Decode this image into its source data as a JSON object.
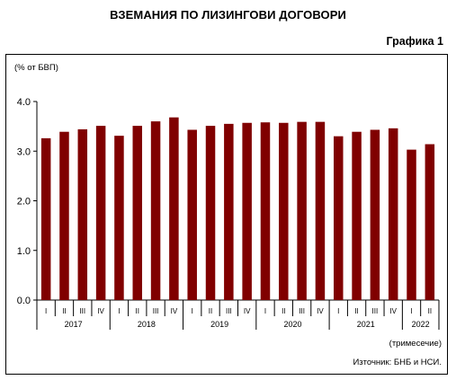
{
  "title": "ВЗЕМАНИЯ ПО ЛИЗИНГОВИ ДОГОВОРИ",
  "figure_label": "Графика 1",
  "unit_label": "(% от БВП)",
  "x_note": "(тримесечие)",
  "source": "Източник: БНБ и НСИ.",
  "colors": {
    "bar": "#800000",
    "axis": "#000000"
  },
  "chart_data": {
    "type": "bar",
    "title": "ВЗЕМАНИЯ ПО ЛИЗИНГОВИ ДОГОВОРИ",
    "ylabel": "(% от БВП)",
    "xlabel": "(тримесечие)",
    "ylim": [
      0,
      4.0
    ],
    "yticks": [
      "0.0",
      "1.0",
      "2.0",
      "3.0",
      "4.0"
    ],
    "grid": false,
    "legend": "none",
    "categories": [
      "I",
      "II",
      "III",
      "IV",
      "I",
      "II",
      "III",
      "IV",
      "I",
      "II",
      "III",
      "IV",
      "I",
      "II",
      "III",
      "IV",
      "I",
      "II",
      "III",
      "IV",
      "I",
      "II"
    ],
    "years": [
      {
        "label": "2017",
        "count": 4
      },
      {
        "label": "2018",
        "count": 4
      },
      {
        "label": "2019",
        "count": 4
      },
      {
        "label": "2020",
        "count": 4
      },
      {
        "label": "2021",
        "count": 4
      },
      {
        "label": "2022",
        "count": 2
      }
    ],
    "values": [
      3.26,
      3.39,
      3.44,
      3.51,
      3.31,
      3.51,
      3.6,
      3.68,
      3.43,
      3.51,
      3.55,
      3.57,
      3.58,
      3.57,
      3.59,
      3.59,
      3.3,
      3.39,
      3.43,
      3.46,
      3.03,
      3.14
    ]
  }
}
